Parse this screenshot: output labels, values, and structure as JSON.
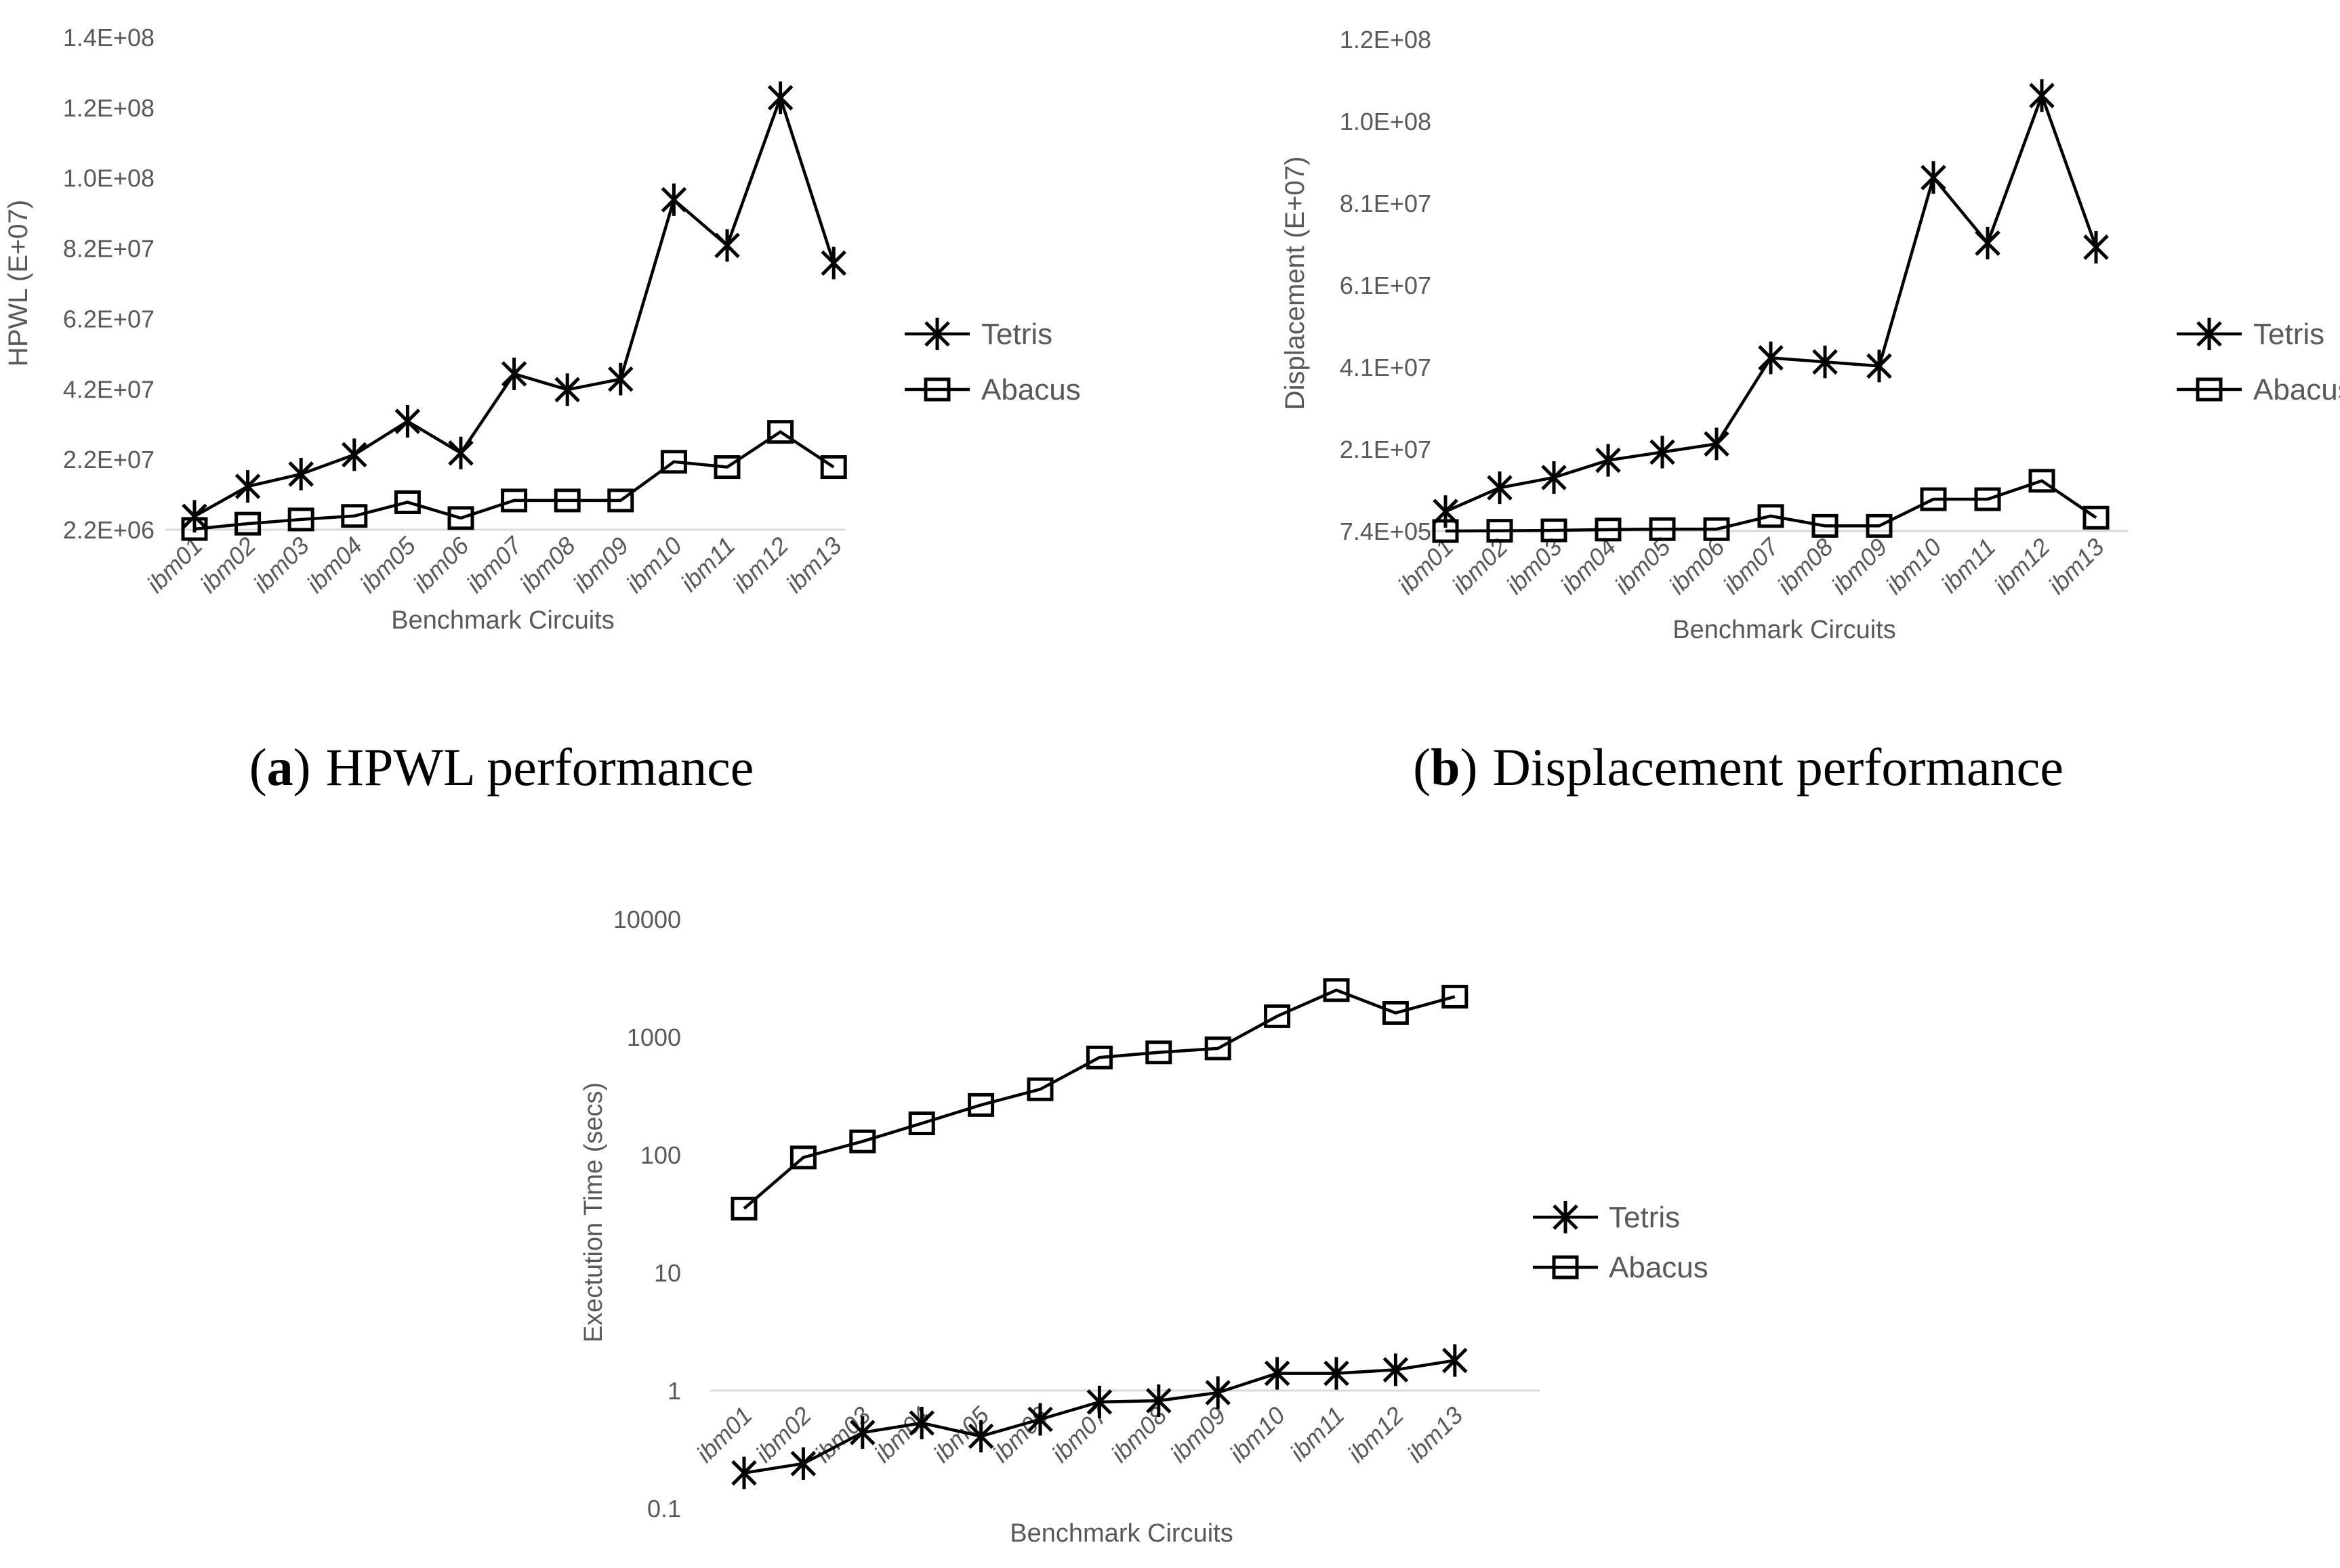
{
  "colors": {
    "text_gray": "#595959",
    "series_black": "#000000",
    "gridline_gray": "#d9d9d9",
    "caption_black": "#000000"
  },
  "captions": [
    {
      "letter": "a",
      "text": "HPWL performance"
    },
    {
      "letter": "b",
      "text": "Displacement performance"
    }
  ],
  "chart_data": [
    {
      "id": "hpwl",
      "type": "line",
      "title": "",
      "xlabel": "Benchmark Circuits",
      "ylabel": "HPWL (E+07)",
      "legend_position": "right",
      "grid": "baseline-only",
      "categories": [
        "ibm01",
        "ibm02",
        "ibm03",
        "ibm04",
        "ibm05",
        "ibm06",
        "ibm07",
        "ibm08",
        "ibm09",
        "ibm10",
        "ibm11",
        "ibm12",
        "ibm13"
      ],
      "y_axis": {
        "scale": "linear",
        "ticks": [
          {
            "label": "2.2E+06",
            "value": 2200000
          },
          {
            "label": "2.2E+07",
            "value": 22200000
          },
          {
            "label": "4.2E+07",
            "value": 42200000
          },
          {
            "label": "6.2E+07",
            "value": 62200000
          },
          {
            "label": "8.2E+07",
            "value": 82200000
          },
          {
            "label": "1.0E+08",
            "value": 102200000
          },
          {
            "label": "1.2E+08",
            "value": 122200000
          },
          {
            "label": "1.4E+08",
            "value": 142200000
          }
        ]
      },
      "series": [
        {
          "name": "Tetris",
          "marker": "star-marker",
          "values": [
            6000000,
            14500000,
            18000000,
            23500000,
            33000000,
            24000000,
            46500000,
            42000000,
            45000000,
            96000000,
            83000000,
            125000000,
            78000000
          ]
        },
        {
          "name": "Abacus",
          "marker": "square-marker",
          "values": [
            2400000,
            3900000,
            5100000,
            6100000,
            10000000,
            5500000,
            10500000,
            10500000,
            10500000,
            21500000,
            20000000,
            30000000,
            20000000
          ]
        }
      ]
    },
    {
      "id": "displacement",
      "type": "line",
      "title": "",
      "xlabel": "Benchmark Circuits",
      "ylabel": "Displacement (E+07)",
      "legend_position": "right",
      "grid": "baseline-only",
      "categories": [
        "ibm01",
        "ibm02",
        "ibm03",
        "ibm04",
        "ibm05",
        "ibm06",
        "ibm07",
        "ibm08",
        "ibm09",
        "ibm10",
        "ibm11",
        "ibm12",
        "ibm13"
      ],
      "y_axis": {
        "scale": "linear",
        "ticks": [
          {
            "label": "7.4E+05",
            "value": 740000
          },
          {
            "label": "2.1E+07",
            "value": 20740000
          },
          {
            "label": "4.1E+07",
            "value": 40740000
          },
          {
            "label": "6.1E+07",
            "value": 60740000
          },
          {
            "label": "8.1E+07",
            "value": 80740000
          },
          {
            "label": "1.0E+08",
            "value": 100740000
          },
          {
            "label": "1.2E+08",
            "value": 120740000
          }
        ]
      },
      "series": [
        {
          "name": "Tetris",
          "marker": "star-marker",
          "values": [
            5500000,
            11300000,
            13800000,
            18000000,
            20000000,
            22000000,
            43000000,
            42000000,
            41000000,
            87000000,
            71000000,
            107000000,
            70000000
          ]
        },
        {
          "name": "Abacus",
          "marker": "square-marker",
          "values": [
            740000,
            800000,
            900000,
            1100000,
            1200000,
            1200000,
            4400000,
            2000000,
            2000000,
            8500000,
            8500000,
            13000000,
            4000000
          ]
        }
      ]
    },
    {
      "id": "execution-time",
      "type": "line",
      "title": "",
      "xlabel": "Benchmark Circuits",
      "ylabel": "Exectution Time (secs)",
      "legend_position": "right",
      "grid": "line-at-1-only",
      "categories": [
        "ibm01",
        "ibm02",
        "ibm03",
        "ibm04",
        "ibm05",
        "ibm06",
        "ibm07",
        "ibm08",
        "ibm09",
        "ibm10",
        "ibm11",
        "ibm12",
        "ibm13"
      ],
      "y_axis": {
        "scale": "log",
        "ticks": [
          {
            "label": "0.1",
            "value": 0.1
          },
          {
            "label": "1",
            "value": 1
          },
          {
            "label": "10",
            "value": 10
          },
          {
            "label": "100",
            "value": 100
          },
          {
            "label": "1000",
            "value": 1000
          },
          {
            "label": "10000",
            "value": 10000
          }
        ]
      },
      "series": [
        {
          "name": "Tetris",
          "marker": "star-marker",
          "values": [
            0.2,
            0.24,
            0.44,
            0.53,
            0.41,
            0.57,
            0.8,
            0.82,
            0.96,
            1.4,
            1.4,
            1.5,
            1.8
          ]
        },
        {
          "name": "Abacus",
          "marker": "square-marker",
          "values": [
            35,
            95,
            130,
            185,
            265,
            360,
            670,
            740,
            800,
            1500,
            2500,
            1600,
            2200
          ]
        }
      ]
    }
  ]
}
